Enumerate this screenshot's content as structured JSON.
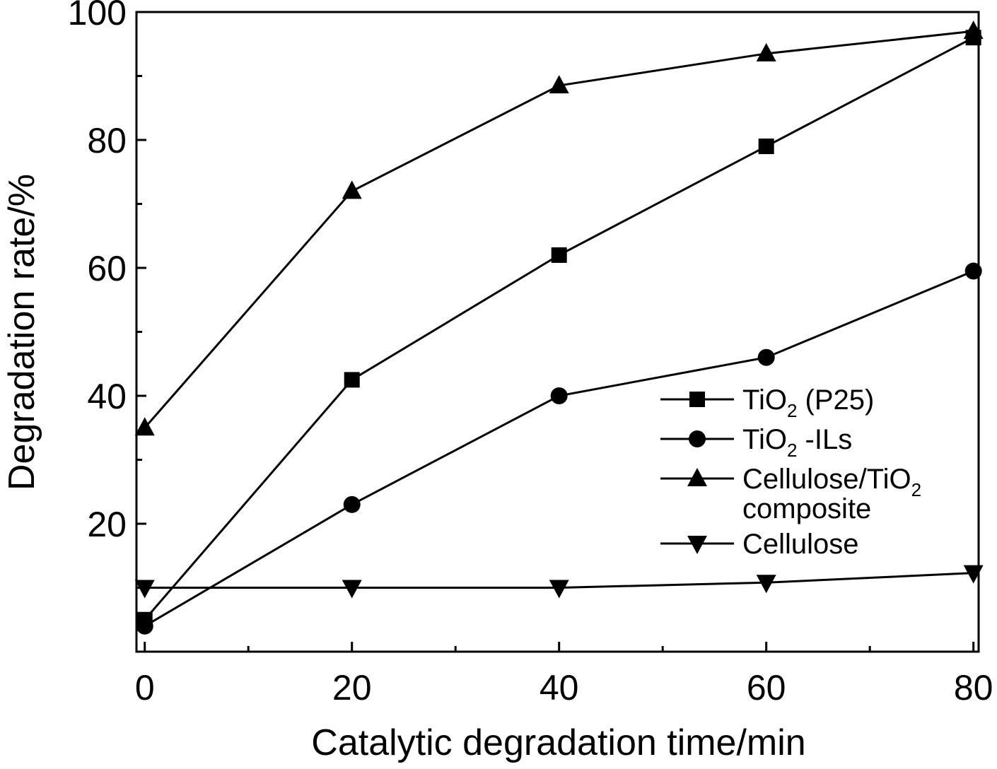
{
  "chart_data": {
    "type": "line",
    "title": "",
    "xlabel": "Catalytic degradation time/min",
    "ylabel": "Degradation rate/%",
    "x": [
      0,
      20,
      40,
      60,
      80
    ],
    "xlim": [
      -0.8,
      80.5
    ],
    "ylim": [
      0,
      100
    ],
    "xticks": [
      "0",
      "20",
      "40",
      "60",
      "80"
    ],
    "yticks": [
      "20",
      "40",
      "60",
      "80",
      "100"
    ],
    "grid": false,
    "legend_position": "right",
    "series": [
      {
        "name": "TiO2 (P25)",
        "marker": "square",
        "values": [
          5,
          42.5,
          62,
          79,
          96
        ]
      },
      {
        "name": "TiO2-ILs",
        "marker": "circle",
        "values": [
          4,
          23,
          40,
          46,
          59.5
        ]
      },
      {
        "name": "Cellulose/TiO2 composite",
        "marker": "triangle-up",
        "values": [
          35,
          72,
          88.5,
          93.5,
          97
        ]
      },
      {
        "name": "Cellulose",
        "marker": "triangle-down",
        "values": [
          10,
          10,
          10,
          10.8,
          12.3
        ]
      }
    ],
    "legend": [
      {
        "pre": "TiO",
        "sub": "2",
        "post": " (P25)"
      },
      {
        "pre": "TiO",
        "sub": "2",
        "post": " -ILs"
      },
      {
        "pre": "Cellulose/TiO",
        "sub": "2",
        "post": "",
        "line2": "composite"
      },
      {
        "pre": "Cellulose",
        "sub": "",
        "post": ""
      }
    ]
  }
}
